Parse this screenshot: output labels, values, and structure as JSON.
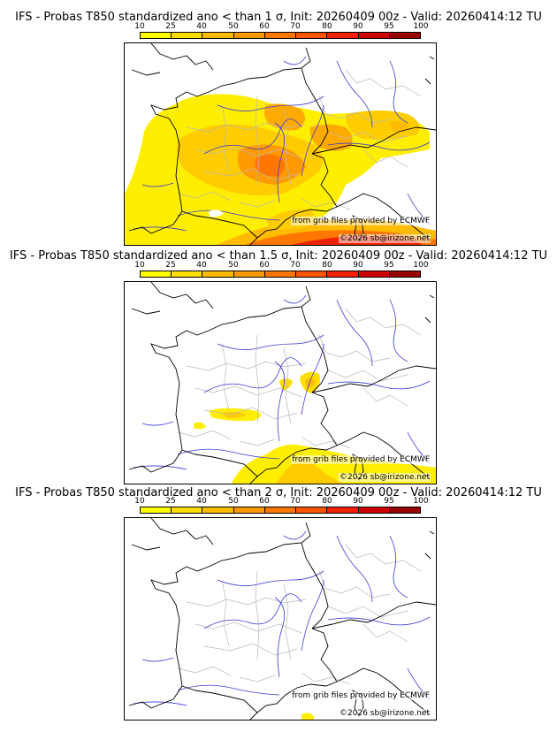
{
  "panels": [
    {
      "title": "IFS - Probas T850  standardized ano < than 1 σ, Init: 20260409 00z - Valid: 20260414:12 TU",
      "credit_source": "from grib files provided by ECMWF",
      "credit_copyright": "©2026 sb@irizone.net"
    },
    {
      "title": "IFS - Probas T850  standardized ano < than 1.5 σ, Init: 20260409 00z - Valid: 20260414:12 TU",
      "credit_source": "from grib files provided by ECMWF",
      "credit_copyright": "©2026 sb@irizone.net"
    },
    {
      "title": "IFS - Probas T850  standardized ano < than 2 σ, Init: 20260409 00z - Valid: 20260414:12 TU",
      "credit_source": "from grib files provided by ECMWF",
      "credit_copyright": "©2026 sb@irizone.net"
    }
  ],
  "colorbar": {
    "ticks": [
      "10",
      "25",
      "40",
      "50",
      "60",
      "70",
      "80",
      "90",
      "95",
      "100"
    ],
    "colors": [
      "#ffff00",
      "#ffdd00",
      "#ffbb00",
      "#ff9900",
      "#ff7700",
      "#ff5500",
      "#ee2200",
      "#cc0000",
      "#990000",
      "#660000"
    ]
  },
  "colors": {
    "coast": "#000000",
    "rivers": "#3a3ad8",
    "borders": "#b0b0b0"
  }
}
